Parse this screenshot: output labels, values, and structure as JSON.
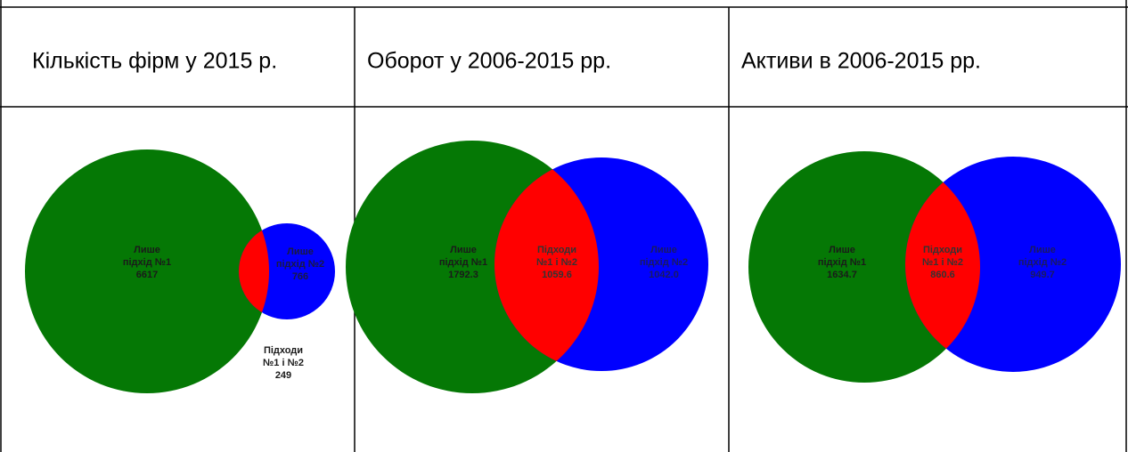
{
  "table": {
    "headers": [
      "Кількість фірм у 2015 р.",
      "Оборот у 2006-2015 рр.",
      "Активи в 2006-2015 рр."
    ]
  },
  "venns": [
    {
      "regions": [
        {
          "lines": [
            "Лише",
            "підхід №1",
            "6617"
          ]
        },
        {
          "lines": [
            "Підходи",
            "№1 і №2",
            "249"
          ]
        },
        {
          "lines": [
            "Лише",
            "підхід №2",
            "766"
          ]
        }
      ]
    },
    {
      "regions": [
        {
          "lines": [
            "Лише",
            "підхід №1",
            "1792.3"
          ]
        },
        {
          "lines": [
            "Підходи",
            "№1 і №2",
            "1059.6"
          ]
        },
        {
          "lines": [
            "Лише",
            "підхід №2",
            "1042.0"
          ]
        }
      ]
    },
    {
      "regions": [
        {
          "lines": [
            "Лише",
            "підхід №1",
            "1634.7"
          ]
        },
        {
          "lines": [
            "Підходи",
            "№1 і №2",
            "860.6"
          ]
        },
        {
          "lines": [
            "Лише",
            "підхід №2",
            "949.7"
          ]
        }
      ]
    }
  ]
}
